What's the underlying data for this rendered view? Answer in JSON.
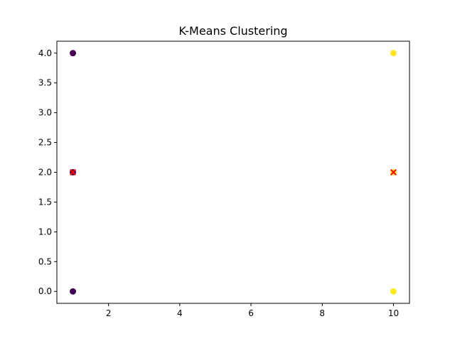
{
  "chart_data": {
    "type": "scatter",
    "title": "K-Means Clustering",
    "xlabel": "",
    "ylabel": "",
    "xlim": [
      0.55,
      10.45
    ],
    "ylim": [
      -0.2,
      4.2
    ],
    "xticks": [
      2,
      4,
      6,
      8,
      10
    ],
    "yticks": [
      0.0,
      0.5,
      1.0,
      1.5,
      2.0,
      2.5,
      3.0,
      3.5,
      4.0
    ],
    "grid": false,
    "legend": "none",
    "series": [
      {
        "marker": "circle",
        "color": "#440154",
        "points": [
          {
            "x": 1,
            "y": 2
          },
          {
            "x": 1,
            "y": 4
          },
          {
            "x": 1,
            "y": 0
          }
        ]
      },
      {
        "marker": "circle",
        "color": "#fde725",
        "points": [
          {
            "x": 10,
            "y": 2
          },
          {
            "x": 10,
            "y": 4
          },
          {
            "x": 10,
            "y": 0
          }
        ]
      },
      {
        "marker": "x",
        "color": "#ff0000",
        "points": [
          {
            "x": 1,
            "y": 2
          },
          {
            "x": 10,
            "y": 2
          }
        ]
      }
    ]
  }
}
